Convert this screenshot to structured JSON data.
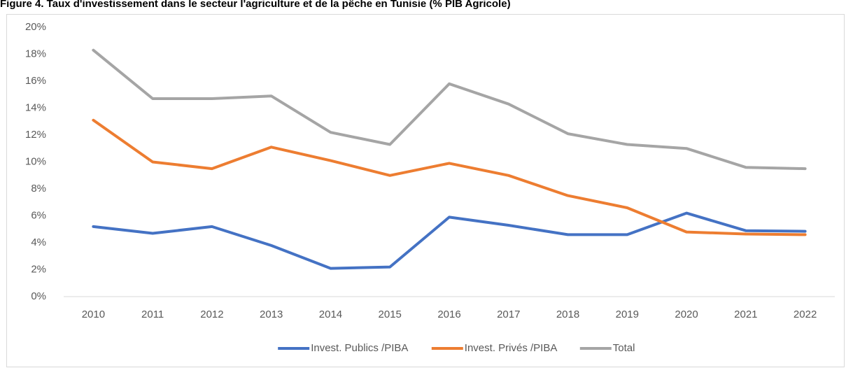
{
  "chart_data": {
    "type": "line",
    "title": "Figure 4. Taux d'investissement dans le secteur l'agriculture et de la pêche en Tunisie (% PIB Agricole)",
    "categories": [
      "2010",
      "2011",
      "2012",
      "2013",
      "2014",
      "2015",
      "2016",
      "2017",
      "2018",
      "2019",
      "2020",
      "2021",
      "2022"
    ],
    "series": [
      {
        "name": "Invest. Publics /PIBA",
        "color": "#4472c4",
        "values": [
          5.2,
          4.7,
          5.2,
          3.8,
          2.1,
          2.2,
          5.9,
          5.3,
          4.6,
          4.6,
          6.2,
          4.9,
          4.85
        ]
      },
      {
        "name": "Invest. Privés /PIBA",
        "color": "#ed7d31",
        "values": [
          13.1,
          10.0,
          9.5,
          11.1,
          10.1,
          9.0,
          9.9,
          9.0,
          7.5,
          6.6,
          4.8,
          4.65,
          4.6
        ]
      },
      {
        "name": "Total",
        "color": "#a5a5a5",
        "values": [
          18.3,
          14.7,
          14.7,
          14.9,
          12.2,
          11.3,
          15.8,
          14.3,
          12.1,
          11.3,
          11.0,
          9.6,
          9.5
        ]
      }
    ],
    "ylim": [
      0,
      20
    ],
    "yticks": [
      {
        "value": 0,
        "label": "0%"
      },
      {
        "value": 2,
        "label": "2%"
      },
      {
        "value": 4,
        "label": "4%"
      },
      {
        "value": 6,
        "label": "6%"
      },
      {
        "value": 8,
        "label": "8%"
      },
      {
        "value": 10,
        "label": "10%"
      },
      {
        "value": 12,
        "label": "12%"
      },
      {
        "value": 14,
        "label": "14%"
      },
      {
        "value": 16,
        "label": "16%"
      },
      {
        "value": 18,
        "label": "18%"
      },
      {
        "value": 20,
        "label": "20%"
      }
    ],
    "legend": "bottom"
  }
}
